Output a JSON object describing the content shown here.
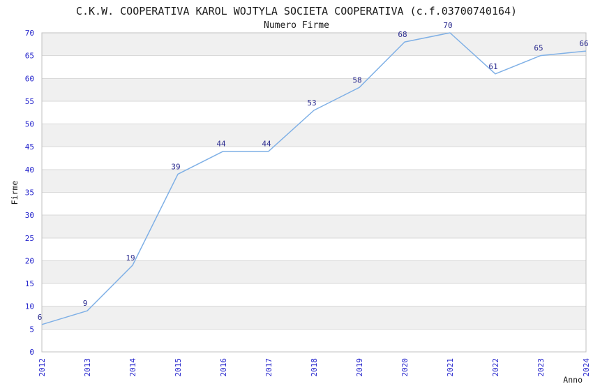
{
  "chart_data": {
    "type": "line",
    "title": "C.K.W. COOPERATIVA KAROL WOJTYLA SOCIETA COOPERATIVA (c.f.03700740164)",
    "subtitle": "Numero Firme",
    "xlabel": "Anno",
    "ylabel": "Firme",
    "categories": [
      "2012",
      "2013",
      "2014",
      "2015",
      "2016",
      "2017",
      "2018",
      "2019",
      "2020",
      "2021",
      "2022",
      "2023",
      "2024"
    ],
    "values": [
      6,
      9,
      19,
      39,
      44,
      44,
      53,
      58,
      68,
      70,
      61,
      65,
      66
    ],
    "ylim": [
      0,
      70
    ],
    "ytick_step": 5,
    "grid": true,
    "legend": "none",
    "band_pattern": "alternating-horizontal",
    "colors": {
      "line": "#7fb0e6",
      "data_label": "#2b2b8f",
      "tick_label": "#2424cc",
      "title_text": "#1a1a1a",
      "band": "#f0f0f0",
      "gridline": "#d9d9d9",
      "plot_border": "#c0c0c0",
      "background": "#ffffff"
    }
  }
}
